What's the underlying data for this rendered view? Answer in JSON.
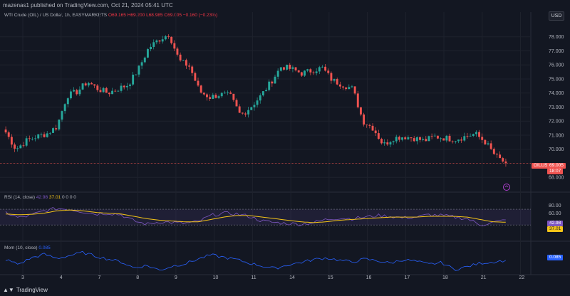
{
  "header": {
    "publisher": "mazenas1 published on TradingView.com, Oct 21, 2024 05:41 UTC",
    "currency_button": "USD"
  },
  "legend": {
    "title": "WTI Crude (OIL) / US Dollar, 1h, EASYMARKETS",
    "o": "O69.165",
    "h": "H69.200",
    "l": "L68.985",
    "c": "C69.005",
    "change": "−0.160 (−0.23%)"
  },
  "price_axis": {
    "ticks": [
      "78.000",
      "77.000",
      "76.000",
      "75.000",
      "74.000",
      "73.000",
      "72.000",
      "71.000",
      "70.000",
      "68.000"
    ],
    "symbol_tag": "OILUSD",
    "last_price": "69.005",
    "countdown": "18:07"
  },
  "rsi": {
    "label": "RSI (14, close)",
    "value_rsi": "42.98",
    "value_ma": "37.01",
    "extra": "0  0  0  0",
    "ticks": [
      "80.00",
      "60.00",
      "20.00"
    ],
    "tag_rsi": "42.98",
    "tag_ma": "37.01"
  },
  "mom": {
    "label": "Mom (10, close)",
    "value": "0.085",
    "tag": "0.085"
  },
  "time_axis": {
    "ticks": [
      "3",
      "4",
      "7",
      "8",
      "9",
      "10",
      "11",
      "14",
      "15",
      "16",
      "17",
      "18",
      "21",
      "22"
    ]
  },
  "footer": {
    "brand": "TradingView"
  },
  "colors": {
    "up": "#26a69a",
    "down": "#ef5350",
    "rsi_line": "#7e57c2",
    "rsi_ma": "#f5c518",
    "mom_line": "#2962ff",
    "background": "#131722"
  },
  "chart_data": [
    {
      "type": "candlestick",
      "title": "WTI Crude (OIL) / US Dollar, 1h, EASYMARKETS",
      "y_ticks": [
        68,
        70,
        71,
        72,
        73,
        74,
        75,
        76,
        77,
        78
      ],
      "ylim": [
        67.2,
        79.1
      ],
      "x_ticks": [
        "3",
        "4",
        "7",
        "8",
        "9",
        "10",
        "11",
        "14",
        "15",
        "16",
        "17",
        "18",
        "21",
        "22"
      ],
      "close_path": [
        71.2,
        70.0,
        70.6,
        70.9,
        71.1,
        71.6,
        73.8,
        74.1,
        74.8,
        74.3,
        74.0,
        74.3,
        74.6,
        75.7,
        77.2,
        77.8,
        78.2,
        76.3,
        75.9,
        74.1,
        73.7,
        73.9,
        73.8,
        72.4,
        73.0,
        73.8,
        74.8,
        75.9,
        75.7,
        75.4,
        75.6,
        75.8,
        74.9,
        74.6,
        74.3,
        72.0,
        71.5,
        70.3,
        70.8,
        70.9,
        70.8,
        70.6,
        70.9,
        70.8,
        70.7,
        70.9,
        71.1,
        70.5,
        69.5,
        69.0
      ]
    },
    {
      "type": "line",
      "title": "RSI (14, close)",
      "y_ticks": [
        20,
        60,
        80
      ],
      "ylim": [
        5,
        90
      ],
      "bands": [
        30,
        70
      ],
      "series": [
        {
          "name": "RSI",
          "values": [
            62,
            48,
            55,
            66,
            72,
            70,
            64,
            58,
            60,
            56,
            40,
            32,
            38,
            36,
            34,
            38,
            54,
            60,
            58,
            52,
            40,
            36,
            34,
            32,
            36,
            44,
            48,
            46,
            50,
            54,
            52,
            48,
            50,
            56,
            54,
            50,
            46,
            30,
            36,
            42.98
          ]
        },
        {
          "name": "MA",
          "values": [
            58,
            56,
            57,
            60,
            66,
            68,
            66,
            62,
            60,
            58,
            52,
            46,
            42,
            40,
            38,
            38,
            44,
            50,
            54,
            54,
            50,
            46,
            42,
            38,
            36,
            38,
            42,
            44,
            46,
            48,
            50,
            50,
            50,
            52,
            52,
            52,
            50,
            44,
            38,
            37.01
          ]
        }
      ]
    },
    {
      "type": "line",
      "title": "Mom (10, close)",
      "series": [
        {
          "name": "Mom",
          "values": [
            0.2,
            -0.6,
            0.5,
            1.1,
            0.4,
            0.9,
            1.4,
            0.8,
            0.3,
            -0.2,
            -1.2,
            -0.8,
            -1.6,
            -0.9,
            -0.5,
            0.3,
            1.0,
            0.6,
            0.2,
            -0.4,
            -0.9,
            -1.3,
            -0.7,
            -0.3,
            0.2,
            0.5,
            0.1,
            -0.2,
            0.3,
            0.0,
            -0.4,
            0.2,
            -0.1,
            -0.6,
            -0.3,
            -1.5,
            -1.0,
            -0.4,
            -0.2,
            0.085
          ]
        }
      ]
    }
  ]
}
